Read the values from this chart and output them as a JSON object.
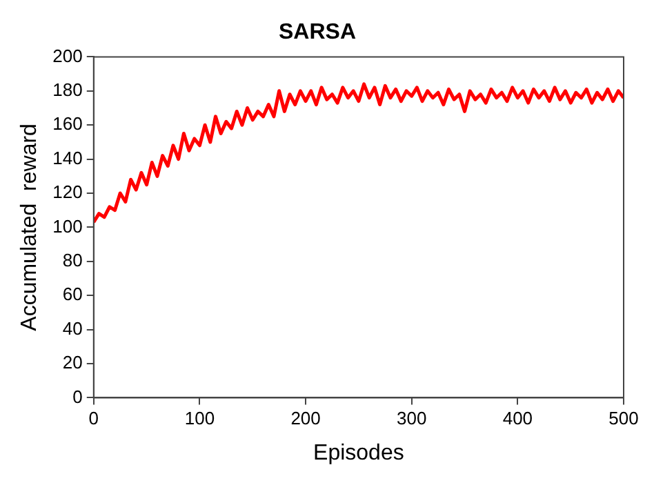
{
  "chart_data": {
    "type": "line",
    "title": "SARSA",
    "xlabel": "Episodes",
    "ylabel": "Accumulated  reward",
    "x": [
      0,
      5,
      10,
      15,
      20,
      25,
      30,
      35,
      40,
      45,
      50,
      55,
      60,
      65,
      70,
      75,
      80,
      85,
      90,
      95,
      100,
      105,
      110,
      115,
      120,
      125,
      130,
      135,
      140,
      145,
      150,
      155,
      160,
      165,
      170,
      175,
      180,
      185,
      190,
      195,
      200,
      205,
      210,
      215,
      220,
      225,
      230,
      235,
      240,
      245,
      250,
      255,
      260,
      265,
      270,
      275,
      280,
      285,
      290,
      295,
      300,
      305,
      310,
      315,
      320,
      325,
      330,
      335,
      340,
      345,
      350,
      355,
      360,
      365,
      370,
      375,
      380,
      385,
      390,
      395,
      400,
      405,
      410,
      415,
      420,
      425,
      430,
      435,
      440,
      445,
      450,
      455,
      460,
      465,
      470,
      475,
      480,
      485,
      490,
      495,
      500
    ],
    "series": [
      {
        "color": "#ff0000",
        "values": [
          103,
          108,
          106,
          112,
          110,
          120,
          115,
          128,
          122,
          132,
          125,
          138,
          130,
          142,
          136,
          148,
          140,
          155,
          145,
          152,
          148,
          160,
          150,
          165,
          155,
          162,
          158,
          168,
          160,
          170,
          163,
          168,
          165,
          172,
          165,
          180,
          168,
          178,
          172,
          180,
          174,
          180,
          172,
          182,
          175,
          178,
          173,
          182,
          176,
          180,
          174,
          184,
          176,
          182,
          172,
          183,
          176,
          181,
          174,
          180,
          177,
          182,
          174,
          180,
          176,
          179,
          172,
          181,
          175,
          178,
          168,
          180,
          175,
          178,
          173,
          181,
          176,
          179,
          174,
          182,
          176,
          180,
          173,
          181,
          176,
          180,
          174,
          182,
          175,
          180,
          173,
          179,
          176,
          181,
          173,
          179,
          175,
          181,
          174,
          180,
          176
        ]
      }
    ],
    "xlim": [
      0,
      500
    ],
    "xticks": [
      0,
      100,
      200,
      300,
      400,
      500
    ],
    "ylim": [
      0,
      200
    ],
    "yticks": [
      0,
      20,
      40,
      60,
      80,
      100,
      120,
      140,
      160,
      180,
      200
    ],
    "grid": false,
    "legend": false,
    "marker": "none",
    "line_style": "solid"
  }
}
